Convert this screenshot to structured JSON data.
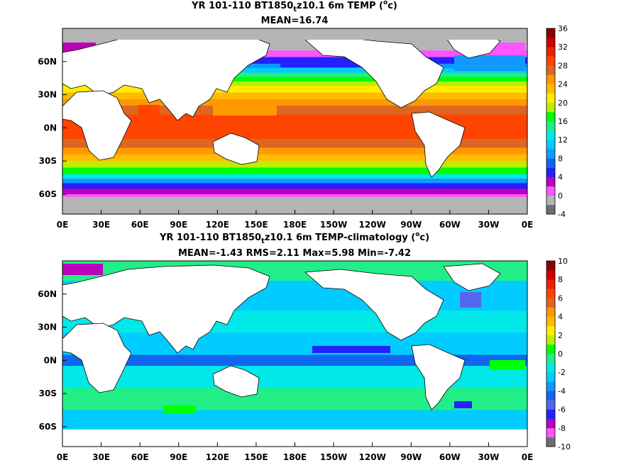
{
  "chart_data": [
    {
      "type": "heatmap",
      "title": "YR 101-110 BT1850",
      "title_sub": "t",
      "title_rest": "z10.1 6m TEMP (",
      "title_sup": "o",
      "title_end": "c)",
      "subtitle": "MEAN=16.74",
      "x_ticks": [
        "0E",
        "30E",
        "60E",
        "90E",
        "120E",
        "150E",
        "180E",
        "150W",
        "120W",
        "90W",
        "60W",
        "30W",
        "0E"
      ],
      "y_ticks": [
        "60N",
        "30N",
        "0N",
        "30S",
        "60S"
      ],
      "y_tick_lat": [
        60,
        30,
        0,
        -30,
        -60
      ],
      "xlim": [
        0,
        360
      ],
      "ylim": [
        -78,
        90
      ],
      "colorbar": {
        "labels": [
          "36",
          "32",
          "28",
          "24",
          "20",
          "16",
          "12",
          "8",
          "4",
          "0",
          "-4"
        ],
        "levels": [
          -4,
          36
        ],
        "colors": [
          "#6e6e6e",
          "#b5b5b5",
          "#ff55ff",
          "#bb00bb",
          "#2222ff",
          "#1166ee",
          "#1199ff",
          "#00ccff",
          "#00e8e8",
          "#22ee88",
          "#00ff00",
          "#bbee00",
          "#ffee00",
          "#ffbb00",
          "#ff9900",
          "#dd6622",
          "#ff4400",
          "#ee2200",
          "#cc0000",
          "#880000"
        ]
      },
      "zonal_bands": [
        {
          "from": 90,
          "to": 70,
          "value": -2
        },
        {
          "from": 70,
          "to": 64,
          "value": 1
        },
        {
          "from": 64,
          "to": 58,
          "value": 5
        },
        {
          "from": 58,
          "to": 54,
          "value": 8
        },
        {
          "from": 54,
          "to": 50,
          "value": 11
        },
        {
          "from": 50,
          "to": 46,
          "value": 14
        },
        {
          "from": 46,
          "to": 42,
          "value": 17
        },
        {
          "from": 42,
          "to": 38,
          "value": 19
        },
        {
          "from": 38,
          "to": 32,
          "value": 21
        },
        {
          "from": 32,
          "to": 26,
          "value": 23
        },
        {
          "from": 26,
          "to": 20,
          "value": 25
        },
        {
          "from": 20,
          "to": 12,
          "value": 27
        },
        {
          "from": 12,
          "to": -10,
          "value": 28.5
        },
        {
          "from": -10,
          "to": -18,
          "value": 27
        },
        {
          "from": -18,
          "to": -24,
          "value": 25
        },
        {
          "from": -24,
          "to": -30,
          "value": 22
        },
        {
          "from": -30,
          "to": -36,
          "value": 19
        },
        {
          "from": -36,
          "to": -42,
          "value": 16
        },
        {
          "from": -42,
          "to": -46,
          "value": 12
        },
        {
          "from": -46,
          "to": -50,
          "value": 8
        },
        {
          "from": -50,
          "to": -55,
          "value": 5
        },
        {
          "from": -55,
          "to": -60,
          "value": 2
        },
        {
          "from": -60,
          "to": -66,
          "value": 0
        },
        {
          "from": -66,
          "to": -78,
          "value": -2
        }
      ]
    },
    {
      "type": "heatmap",
      "title": "YR 101-110 BT1850",
      "title_sub": "t",
      "title_rest": "z10.1 6m TEMP-climatology (",
      "title_sup": "o",
      "title_end": "c)",
      "subtitle": "MEAN=-1.43   RMS=2.11   Max=5.98   Min=-7.42",
      "x_ticks": [
        "0E",
        "30E",
        "60E",
        "90E",
        "120E",
        "150E",
        "180E",
        "150W",
        "120W",
        "90W",
        "60W",
        "30W",
        "0E"
      ],
      "y_ticks": [
        "60N",
        "30N",
        "0N",
        "30S",
        "60S"
      ],
      "y_tick_lat": [
        60,
        30,
        0,
        -30,
        -60
      ],
      "xlim": [
        0,
        360
      ],
      "ylim": [
        -78,
        90
      ],
      "colorbar": {
        "labels": [
          "10",
          "8",
          "6",
          "4",
          "2",
          "0",
          "-2",
          "-4",
          "-6",
          "-8",
          "-10"
        ],
        "levels": [
          -10,
          10
        ],
        "colors": [
          "#6e6e6e",
          "#ff55ff",
          "#bb00bb",
          "#2222ff",
          "#5566ee",
          "#1166ee",
          "#1199ff",
          "#00ccff",
          "#00e8e8",
          "#22ee88",
          "#00ff00",
          "#bbee00",
          "#ffee00",
          "#ffbb00",
          "#ff9900",
          "#dd6622",
          "#ff4400",
          "#ee2200",
          "#cc0000",
          "#880000"
        ]
      },
      "zonal_bands": [
        {
          "from": 90,
          "to": 72,
          "value": -0.5
        },
        {
          "from": 72,
          "to": 45,
          "value": -2.5
        },
        {
          "from": 45,
          "to": 25,
          "value": -1.5
        },
        {
          "from": 25,
          "to": 5,
          "value": -2.5
        },
        {
          "from": 5,
          "to": -5,
          "value": -4.5
        },
        {
          "from": -5,
          "to": -25,
          "value": -1.5
        },
        {
          "from": -25,
          "to": -45,
          "value": -0.5
        },
        {
          "from": -45,
          "to": -62,
          "value": -2.5
        },
        {
          "from": -62,
          "to": -72,
          "value": -0.5
        }
      ]
    }
  ]
}
